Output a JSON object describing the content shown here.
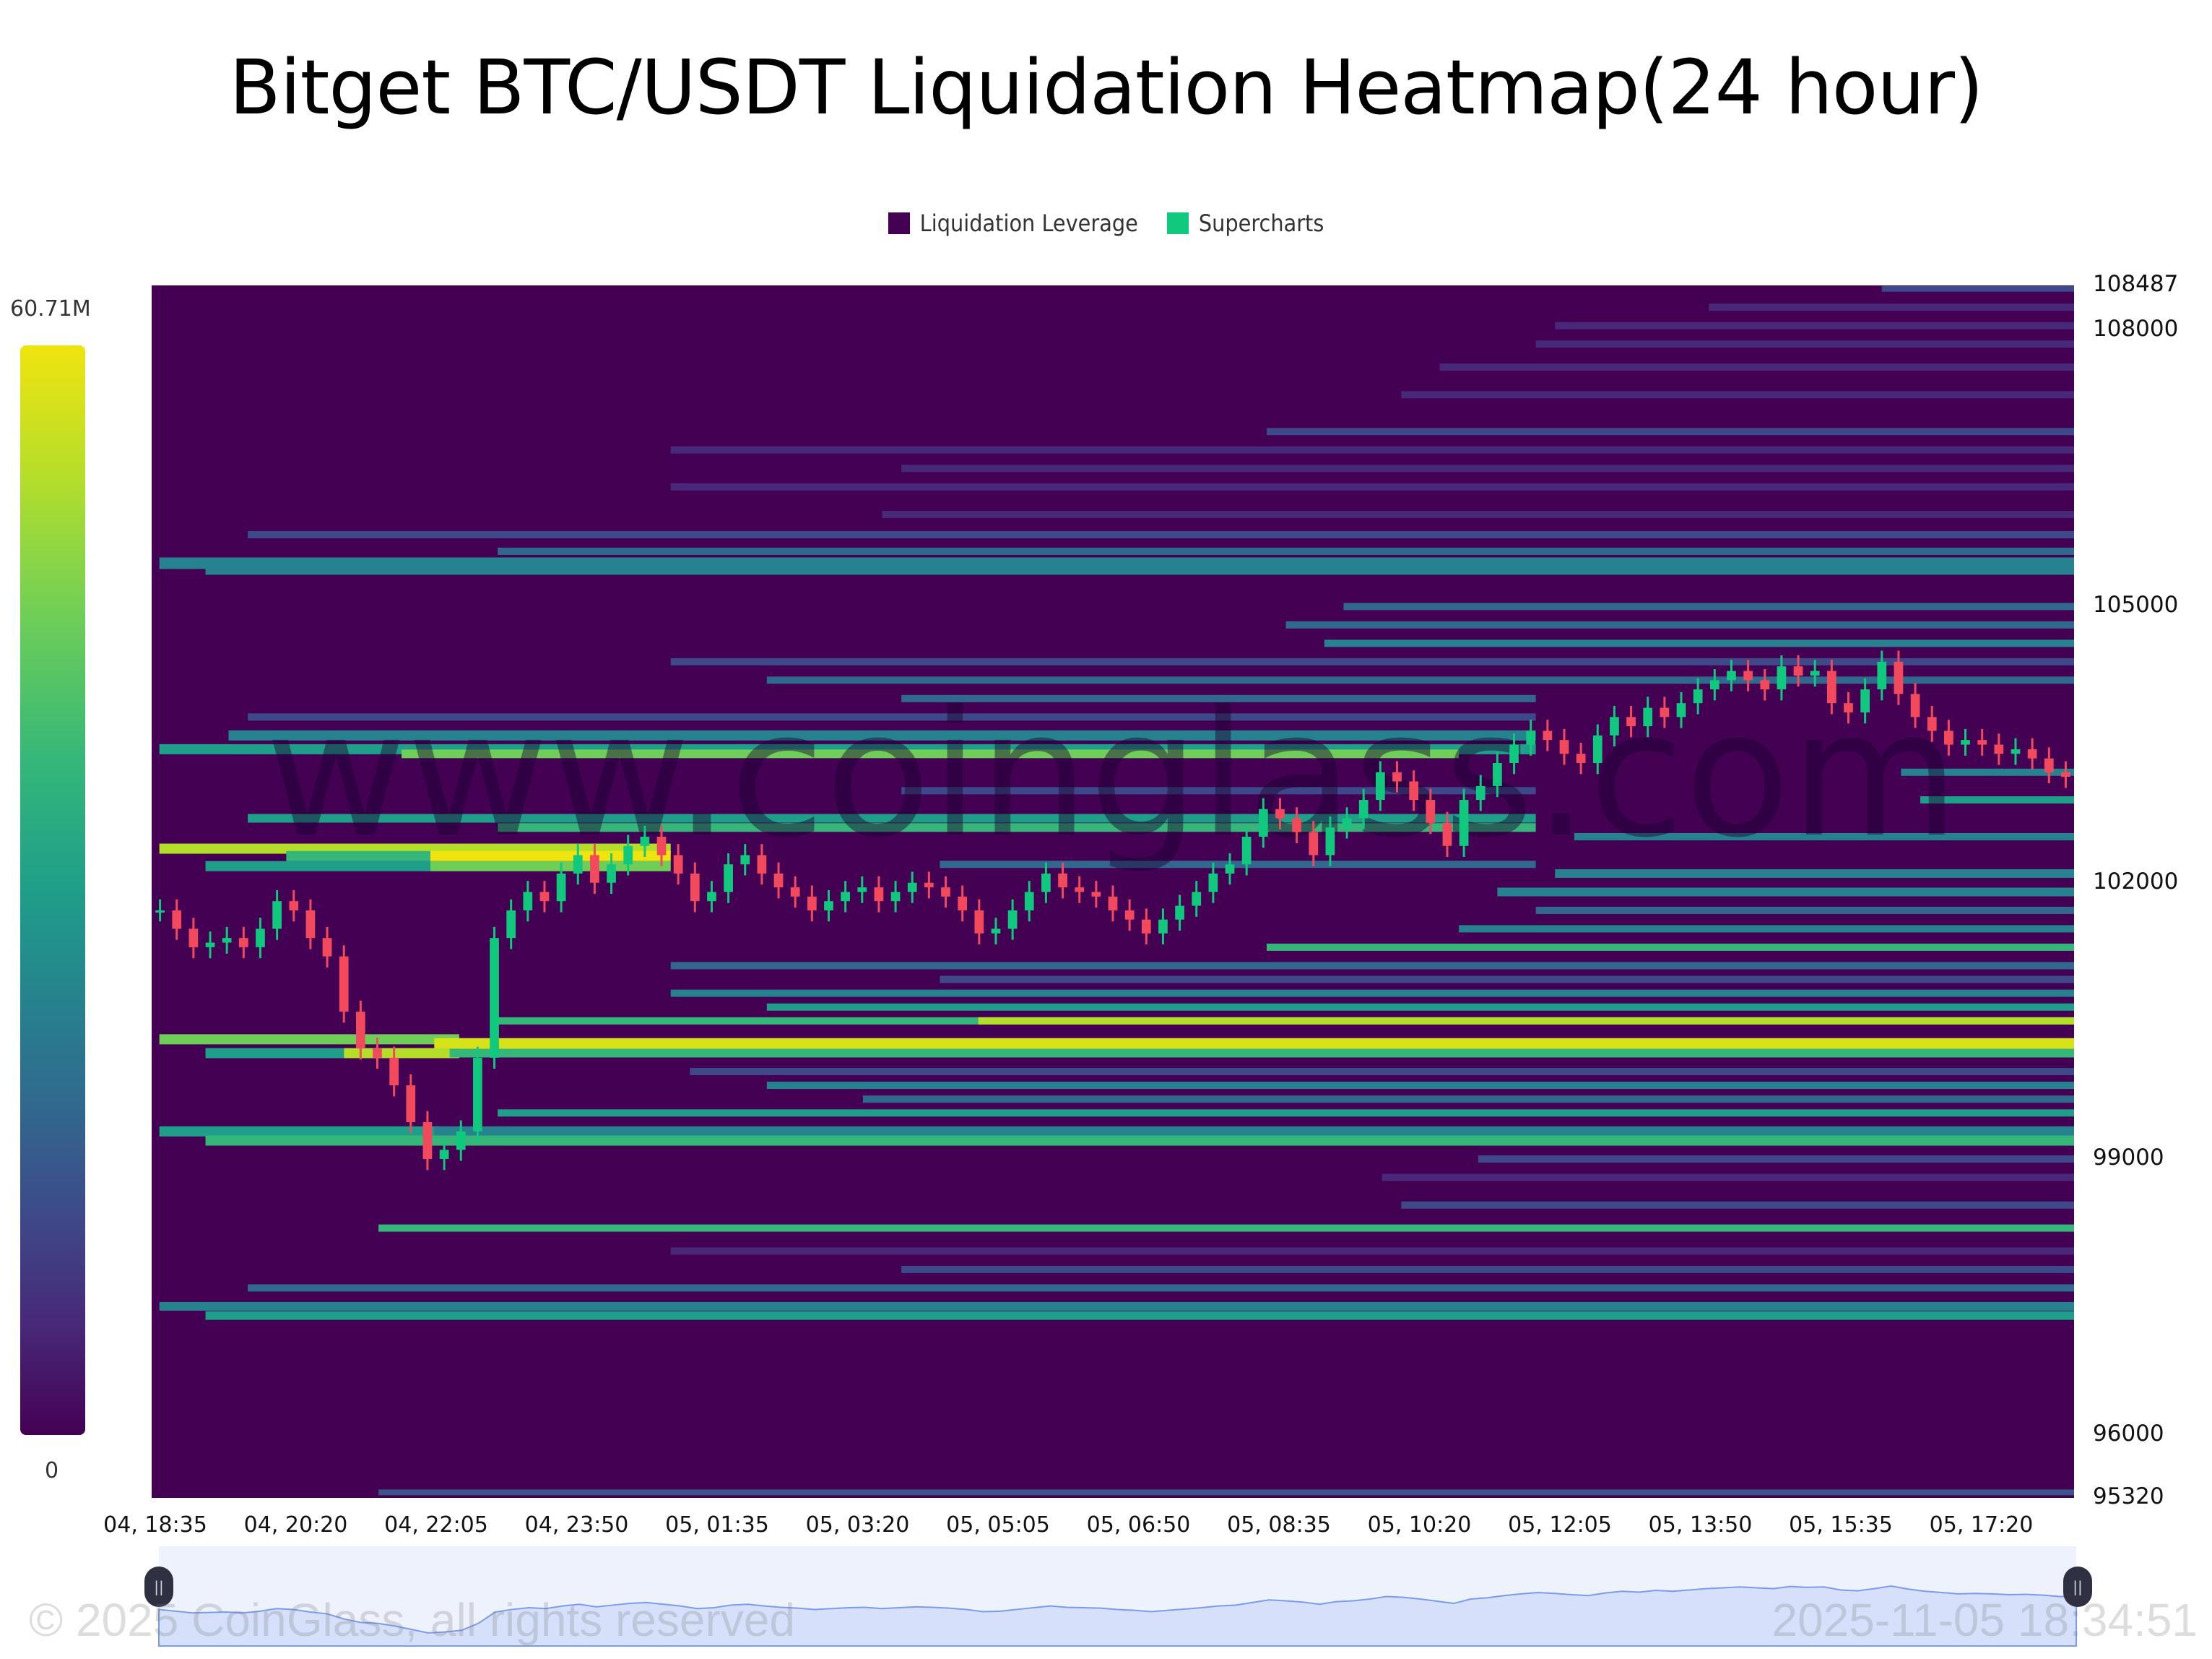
{
  "title": "Bitget BTC/USDT Liquidation Heatmap(24 hour)",
  "legend": [
    {
      "label": "Liquidation Leverage",
      "color": "#440154"
    },
    {
      "label": "Supercharts",
      "color": "#10c97e"
    }
  ],
  "colorbar": {
    "max_label": "60.71M",
    "min_label": "0"
  },
  "watermark": "www.coinglass.com",
  "footer": {
    "copyright": "© 2025 CoinGlass, all rights reserved",
    "timestamp": "2025-11-05 18:34:51"
  },
  "chart_data": {
    "type": "heatmap",
    "title": "Bitget BTC/USDT Liquidation Heatmap(24 hour)",
    "xlabel": "",
    "ylabel": "",
    "ylim": [
      95320,
      108487
    ],
    "y_ticks": [
      "108487",
      "108000",
      "105000",
      "102000",
      "99000",
      "96000",
      "95320"
    ],
    "x_ticks": [
      "04, 18:35",
      "04, 20:20",
      "04, 22:05",
      "04, 23:50",
      "05, 01:35",
      "05, 03:20",
      "05, 05:05",
      "05, 06:50",
      "05, 08:35",
      "05, 10:20",
      "05, 12:05",
      "05, 13:50",
      "05, 15:35",
      "05, 17:20"
    ],
    "colorscale": {
      "min": 0,
      "max": "60.71M",
      "palette": "viridis"
    },
    "legend": [
      "Liquidation Leverage",
      "Supercharts"
    ],
    "price_range_current": 103200,
    "bands": [
      {
        "price": 102370,
        "x0": 0.004,
        "x1": 0.27,
        "color": "#b5de2b",
        "h": 7
      },
      {
        "price": 102290,
        "x0": 0.07,
        "x1": 0.145,
        "color": "#35b779",
        "h": 7
      },
      {
        "price": 102290,
        "x0": 0.145,
        "x1": 0.27,
        "color": "#f0e40f",
        "h": 7
      },
      {
        "price": 102180,
        "x0": 0.028,
        "x1": 0.145,
        "color": "#1f9e89",
        "h": 7
      },
      {
        "price": 102180,
        "x0": 0.145,
        "x1": 0.27,
        "color": "#6ece58",
        "h": 7
      },
      {
        "price": 105470,
        "x0": 0.004,
        "x1": 1.0,
        "color": "#26828e",
        "h": 8
      },
      {
        "price": 105400,
        "x0": 0.028,
        "x1": 1.0,
        "color": "#26828e",
        "h": 7
      },
      {
        "price": 105780,
        "x0": 0.05,
        "x1": 1.0,
        "color": "#3e4989",
        "h": 5
      },
      {
        "price": 105600,
        "x0": 0.18,
        "x1": 1.0,
        "color": "#31688e",
        "h": 5
      },
      {
        "price": 106000,
        "x0": 0.38,
        "x1": 1.0,
        "color": "#482878",
        "h": 5
      },
      {
        "price": 106300,
        "x0": 0.27,
        "x1": 1.0,
        "color": "#482878",
        "h": 5
      },
      {
        "price": 106500,
        "x0": 0.39,
        "x1": 1.0,
        "color": "#482878",
        "h": 5
      },
      {
        "price": 106700,
        "x0": 0.27,
        "x1": 1.0,
        "color": "#482878",
        "h": 5
      },
      {
        "price": 106900,
        "x0": 0.58,
        "x1": 1.0,
        "color": "#3e4989",
        "h": 5
      },
      {
        "price": 107300,
        "x0": 0.65,
        "x1": 1.0,
        "color": "#482878",
        "h": 5
      },
      {
        "price": 107600,
        "x0": 0.67,
        "x1": 1.0,
        "color": "#482878",
        "h": 5
      },
      {
        "price": 107850,
        "x0": 0.72,
        "x1": 1.0,
        "color": "#482878",
        "h": 5
      },
      {
        "price": 108050,
        "x0": 0.73,
        "x1": 1.0,
        "color": "#482878",
        "h": 5
      },
      {
        "price": 108250,
        "x0": 0.81,
        "x1": 1.0,
        "color": "#482878",
        "h": 5
      },
      {
        "price": 108450,
        "x0": 0.9,
        "x1": 1.0,
        "color": "#3e4989",
        "h": 4
      },
      {
        "price": 105000,
        "x0": 0.62,
        "x1": 1.0,
        "color": "#31688e",
        "h": 5
      },
      {
        "price": 104800,
        "x0": 0.59,
        "x1": 1.0,
        "color": "#31688e",
        "h": 5
      },
      {
        "price": 104600,
        "x0": 0.61,
        "x1": 1.0,
        "color": "#26828e",
        "h": 5
      },
      {
        "price": 104400,
        "x0": 0.27,
        "x1": 1.0,
        "color": "#3e4989",
        "h": 5
      },
      {
        "price": 104200,
        "x0": 0.32,
        "x1": 1.0,
        "color": "#31688e",
        "h": 5
      },
      {
        "price": 104000,
        "x0": 0.39,
        "x1": 0.72,
        "color": "#31688e",
        "h": 5
      },
      {
        "price": 103800,
        "x0": 0.05,
        "x1": 0.72,
        "color": "#3e4989",
        "h": 5
      },
      {
        "price": 103600,
        "x0": 0.04,
        "x1": 0.72,
        "color": "#26828e",
        "h": 7
      },
      {
        "price": 103450,
        "x0": 0.004,
        "x1": 0.72,
        "color": "#1f9e89",
        "h": 7
      },
      {
        "price": 103400,
        "x0": 0.13,
        "x1": 0.68,
        "color": "#6ece58",
        "h": 6
      },
      {
        "price": 103200,
        "x0": 0.91,
        "x1": 1.0,
        "color": "#26828e",
        "h": 5
      },
      {
        "price": 103000,
        "x0": 0.39,
        "x1": 0.72,
        "color": "#3e4989",
        "h": 5
      },
      {
        "price": 102900,
        "x0": 0.92,
        "x1": 1.0,
        "color": "#1f9e89",
        "h": 5
      },
      {
        "price": 102700,
        "x0": 0.05,
        "x1": 0.72,
        "color": "#1f9e89",
        "h": 6
      },
      {
        "price": 102600,
        "x0": 0.18,
        "x1": 0.72,
        "color": "#35b779",
        "h": 6
      },
      {
        "price": 102500,
        "x0": 0.74,
        "x1": 1.0,
        "color": "#26828e",
        "h": 5
      },
      {
        "price": 102200,
        "x0": 0.41,
        "x1": 0.72,
        "color": "#31688e",
        "h": 5
      },
      {
        "price": 102100,
        "x0": 0.73,
        "x1": 1.0,
        "color": "#26828e",
        "h": 6
      },
      {
        "price": 101900,
        "x0": 0.7,
        "x1": 1.0,
        "color": "#26828e",
        "h": 6
      },
      {
        "price": 101700,
        "x0": 0.72,
        "x1": 1.0,
        "color": "#31688e",
        "h": 5
      },
      {
        "price": 101500,
        "x0": 0.68,
        "x1": 1.0,
        "color": "#26828e",
        "h": 5
      },
      {
        "price": 101300,
        "x0": 0.58,
        "x1": 1.0,
        "color": "#35b779",
        "h": 5
      },
      {
        "price": 101100,
        "x0": 0.27,
        "x1": 1.0,
        "color": "#31688e",
        "h": 5
      },
      {
        "price": 100950,
        "x0": 0.41,
        "x1": 1.0,
        "color": "#3e4989",
        "h": 5
      },
      {
        "price": 100800,
        "x0": 0.27,
        "x1": 1.0,
        "color": "#26828e",
        "h": 5
      },
      {
        "price": 100650,
        "x0": 0.32,
        "x1": 1.0,
        "color": "#1f9e89",
        "h": 5
      },
      {
        "price": 100500,
        "x0": 0.18,
        "x1": 1.0,
        "color": "#35b779",
        "h": 5
      },
      {
        "price": 100500,
        "x0": 0.43,
        "x1": 1.0,
        "color": "#b5de2b",
        "h": 5
      },
      {
        "price": 100300,
        "x0": 0.004,
        "x1": 0.16,
        "color": "#6ece58",
        "h": 7
      },
      {
        "price": 100250,
        "x0": 0.147,
        "x1": 1.0,
        "color": "#d8e219",
        "h": 8
      },
      {
        "price": 100150,
        "x0": 0.028,
        "x1": 0.1,
        "color": "#1f9e89",
        "h": 7
      },
      {
        "price": 100150,
        "x0": 0.1,
        "x1": 0.16,
        "color": "#b5de2b",
        "h": 7
      },
      {
        "price": 100150,
        "x0": 0.155,
        "x1": 1.0,
        "color": "#35b779",
        "h": 6
      },
      {
        "price": 99950,
        "x0": 0.28,
        "x1": 1.0,
        "color": "#3e4989",
        "h": 5
      },
      {
        "price": 99800,
        "x0": 0.32,
        "x1": 1.0,
        "color": "#26828e",
        "h": 5
      },
      {
        "price": 99650,
        "x0": 0.37,
        "x1": 1.0,
        "color": "#31688e",
        "h": 5
      },
      {
        "price": 99500,
        "x0": 0.18,
        "x1": 1.0,
        "color": "#1f9e89",
        "h": 5
      },
      {
        "price": 99300,
        "x0": 0.004,
        "x1": 0.15,
        "color": "#1f9e89",
        "h": 7
      },
      {
        "price": 99300,
        "x0": 0.147,
        "x1": 1.0,
        "color": "#26828e",
        "h": 7
      },
      {
        "price": 99200,
        "x0": 0.028,
        "x1": 1.0,
        "color": "#35b779",
        "h": 7
      },
      {
        "price": 99000,
        "x0": 0.69,
        "x1": 1.0,
        "color": "#3e4989",
        "h": 5
      },
      {
        "price": 98800,
        "x0": 0.64,
        "x1": 1.0,
        "color": "#482878",
        "h": 5
      },
      {
        "price": 98500,
        "x0": 0.65,
        "x1": 1.0,
        "color": "#3e4989",
        "h": 5
      },
      {
        "price": 98250,
        "x0": 0.118,
        "x1": 1.0,
        "color": "#35b779",
        "h": 5
      },
      {
        "price": 98000,
        "x0": 0.27,
        "x1": 1.0,
        "color": "#482878",
        "h": 5
      },
      {
        "price": 97800,
        "x0": 0.39,
        "x1": 1.0,
        "color": "#3e4989",
        "h": 5
      },
      {
        "price": 97600,
        "x0": 0.05,
        "x1": 1.0,
        "color": "#31688e",
        "h": 5
      },
      {
        "price": 97400,
        "x0": 0.004,
        "x1": 1.0,
        "color": "#26828e",
        "h": 6
      },
      {
        "price": 97300,
        "x0": 0.028,
        "x1": 1.0,
        "color": "#1f9e89",
        "h": 6
      },
      {
        "price": 95380,
        "x0": 0.118,
        "x1": 1.0,
        "color": "#3b528b",
        "h": 4
      }
    ],
    "candles_close": [
      101700,
      101500,
      101300,
      101350,
      101400,
      101300,
      101500,
      101800,
      101700,
      101400,
      101200,
      100600,
      100200,
      100100,
      99800,
      99400,
      99000,
      99100,
      99300,
      100100,
      101400,
      101700,
      101900,
      101800,
      102100,
      102300,
      102000,
      102200,
      102400,
      102500,
      102300,
      102100,
      101800,
      101900,
      102200,
      102300,
      102100,
      101950,
      101850,
      101700,
      101800,
      101900,
      101950,
      101800,
      101900,
      102000,
      101950,
      101850,
      101700,
      101450,
      101500,
      101700,
      101900,
      102100,
      101950,
      101900,
      101850,
      101700,
      101600,
      101450,
      101600,
      101750,
      101900,
      102100,
      102200,
      102500,
      102800,
      102700,
      102550,
      102300,
      102600,
      102700,
      102900,
      103200,
      103100,
      102900,
      102650,
      102400,
      102900,
      103050,
      103300,
      103500,
      103650,
      103550,
      103400,
      103300,
      103600,
      103800,
      103700,
      103900,
      103800,
      103950,
      104100,
      104200,
      104300,
      104200,
      104100,
      104350,
      104250,
      104300,
      103950,
      103850,
      104100,
      104400,
      104050,
      103800,
      103650,
      103500,
      103550,
      103500,
      103400,
      103450,
      103350,
      103200,
      103150
    ]
  },
  "navigator": {
    "left_handle": "||",
    "right_handle": "||"
  }
}
